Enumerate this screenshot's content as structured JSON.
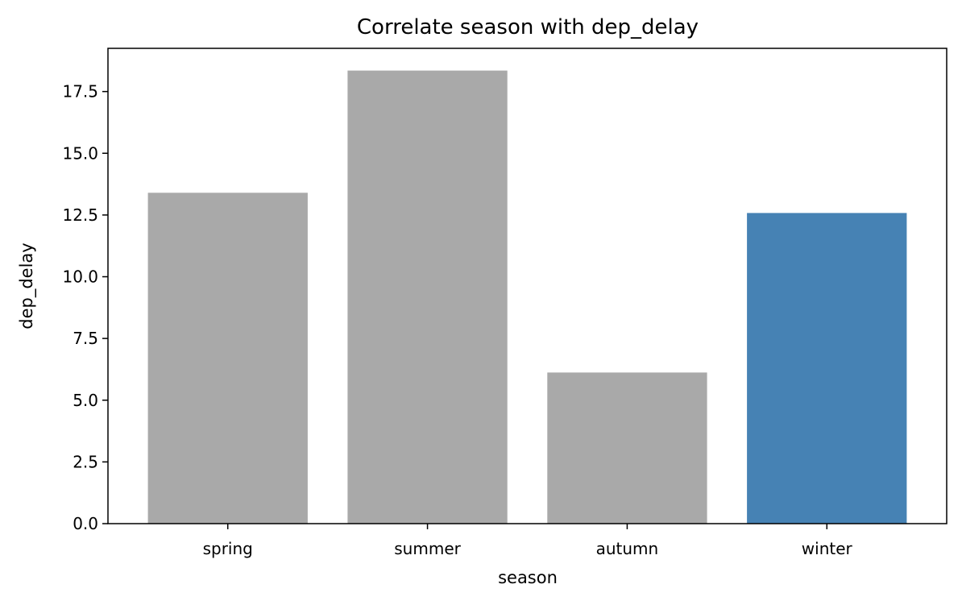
{
  "chart_data": {
    "type": "bar",
    "title": "Correlate season with dep_delay",
    "xlabel": "season",
    "ylabel": "dep_delay",
    "categories": [
      "spring",
      "summer",
      "autumn",
      "winter"
    ],
    "values": [
      13.4,
      18.35,
      6.12,
      12.58
    ],
    "bar_colors": [
      "#a9a9a9",
      "#a9a9a9",
      "#a9a9a9",
      "#4682b4"
    ],
    "highlighted_category": "winter",
    "ylim": [
      0,
      19.25
    ],
    "yticks": [
      0.0,
      2.5,
      5.0,
      7.5,
      10.0,
      12.5,
      15.0,
      17.5
    ],
    "ytick_labels": [
      "0.0",
      "2.5",
      "5.0",
      "7.5",
      "10.0",
      "12.5",
      "15.0",
      "17.5"
    ],
    "grid": false,
    "legend": "none"
  }
}
